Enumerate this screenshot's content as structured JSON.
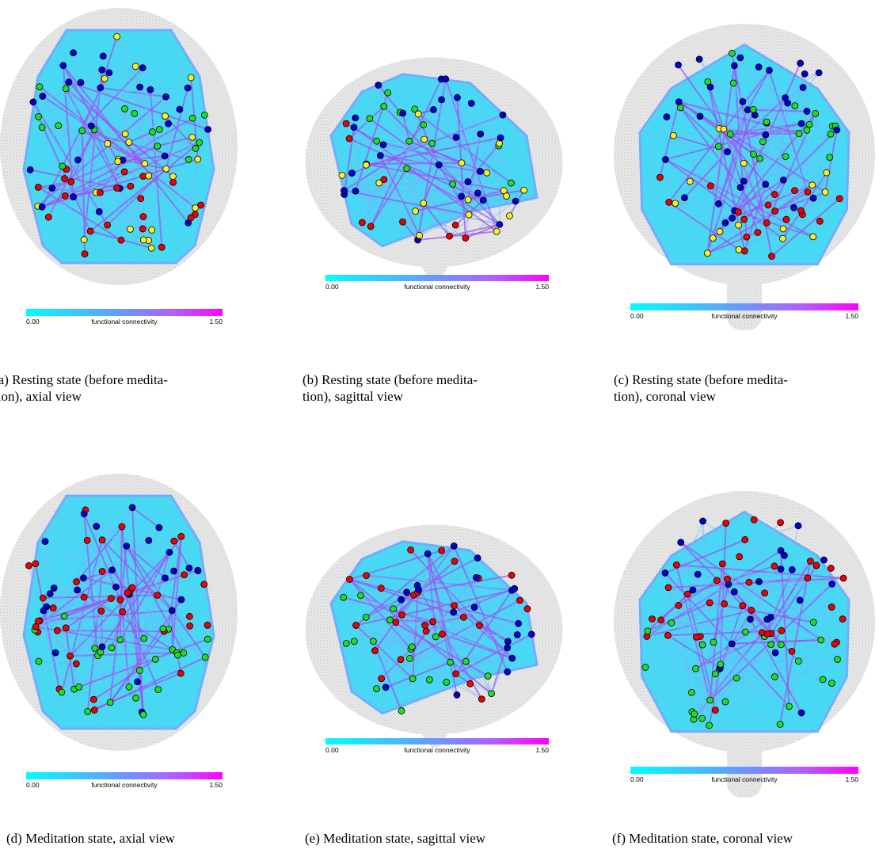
{
  "panels": [
    {
      "caption": [
        "(a) Resting state (before medita-",
        "tion), axial view"
      ],
      "colorbar": {
        "min": "0.00",
        "label": "functional connectivity",
        "max": "1.50"
      }
    },
    {
      "caption": [
        "(b) Resting state (before medita-",
        "tion), sagittal view"
      ],
      "colorbar": {
        "min": "0.00",
        "label": "functional connectivity",
        "max": "1.50"
      }
    },
    {
      "caption": [
        "(c) Resting state (before medita-",
        "tion), coronal view"
      ],
      "colorbar": {
        "min": "0.00",
        "label": "functional connectivity",
        "max": "1.50"
      }
    },
    {
      "caption": [
        "(d) Meditation state, axial view"
      ],
      "colorbar": {
        "min": "0.00",
        "label": "functional connectivity",
        "max": "1.50"
      }
    },
    {
      "caption": [
        "(e) Meditation state, sagittal view"
      ],
      "colorbar": {
        "min": "0.00",
        "label": "functional connectivity",
        "max": "1.50"
      }
    },
    {
      "caption": [
        "(f) Meditation state, coronal view"
      ],
      "colorbar": {
        "min": "0.00",
        "label": "functional connectivity",
        "max": "1.50"
      }
    }
  ]
}
